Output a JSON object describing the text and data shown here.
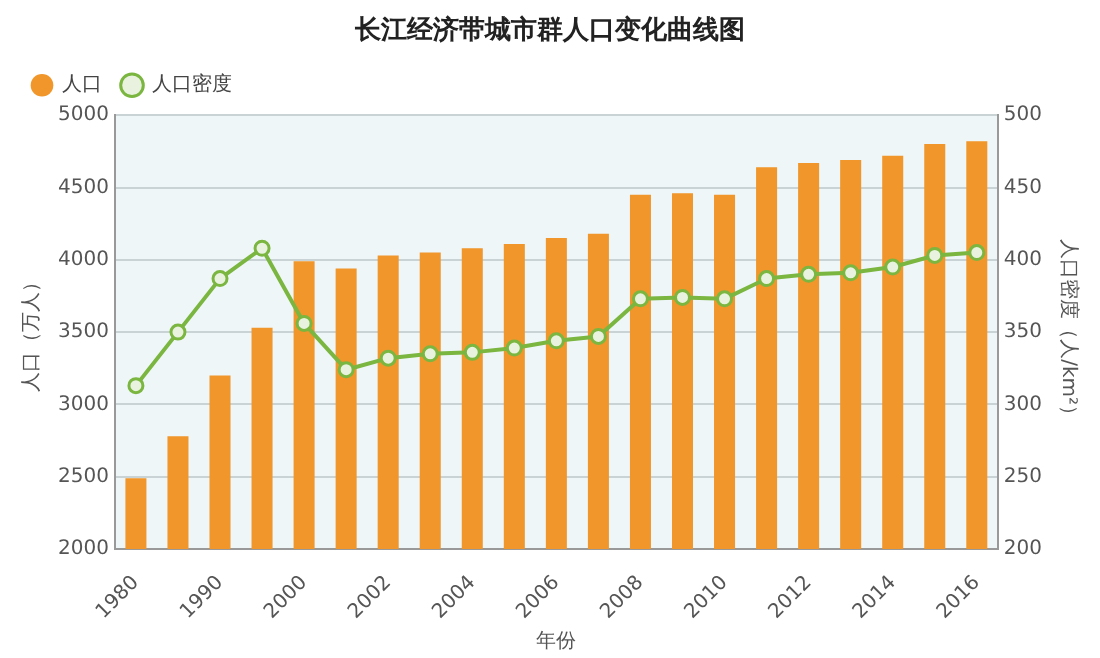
{
  "chart_data": {
    "type": "bar",
    "title": "长江经济带城市群人口变化曲线图",
    "xlabel": "年份",
    "ylabel": "人口（万人）",
    "y2label": "人口密度（人/km²）",
    "categories": [
      "1980",
      null,
      "1990",
      null,
      "2000",
      null,
      "2002",
      null,
      "2004",
      null,
      "2006",
      null,
      "2008",
      null,
      "2010",
      null,
      "2012",
      null,
      "2014",
      null,
      "2016"
    ],
    "series": [
      {
        "name": "人口",
        "color": "#f0962a",
        "values": [
          2490,
          2780,
          3200,
          3530,
          3990,
          3940,
          4030,
          4050,
          4080,
          4110,
          4150,
          4180,
          4450,
          4460,
          4450,
          4640,
          4670,
          4690,
          4720,
          4800,
          4820
        ]
      },
      {
        "name": "人口密度",
        "type": "line",
        "axis": "y2",
        "color": "#7ab640",
        "values": [
          313,
          350,
          387,
          408,
          356,
          324,
          332,
          335,
          336,
          339,
          344,
          347,
          373,
          374,
          373,
          387,
          390,
          391,
          395,
          403,
          405
        ]
      }
    ],
    "ylim": [
      2000,
      5000
    ],
    "yticks": [
      2000,
      2500,
      3000,
      3500,
      4000,
      4500,
      5000
    ],
    "y2lim": [
      200,
      500
    ],
    "y2ticks": [
      200,
      250,
      300,
      350,
      400,
      450,
      500
    ],
    "grid": "y",
    "legend": "top left",
    "marker": "circle"
  }
}
